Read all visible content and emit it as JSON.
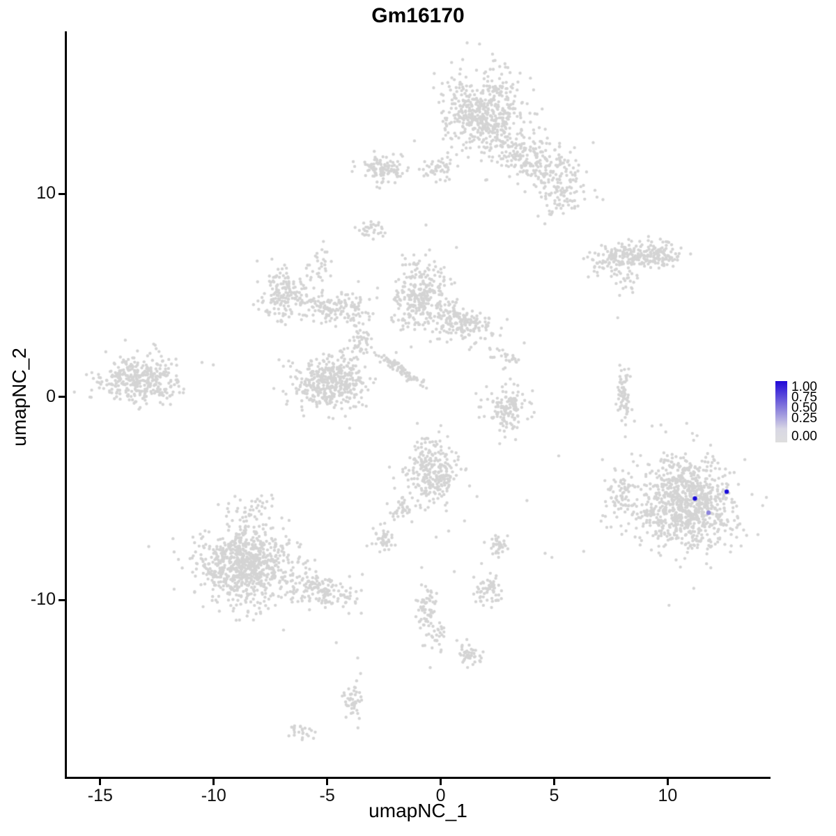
{
  "chart_data": {
    "type": "scatter",
    "title": "Gm16170",
    "xlabel": "umapNC_1",
    "ylabel": "umapNC_2",
    "xlim": [
      -16.5,
      14.5
    ],
    "ylim": [
      -18.7,
      18.0
    ],
    "grid": false,
    "axes": {
      "x_ticks": {
        "values": [
          -15,
          -10,
          -5,
          0,
          5,
          10
        ],
        "labels": [
          "-15",
          "-10",
          "-5",
          "0",
          "5",
          "10"
        ]
      },
      "y_ticks": {
        "values": [
          -10,
          0,
          10
        ],
        "labels": [
          "-10",
          "0",
          "10"
        ]
      }
    },
    "legend": {
      "position": "right",
      "labels": [
        "1.00",
        "0.75",
        "0.50",
        "0.25",
        "0.00"
      ],
      "gradient_stops": [
        "#2008D8 0%",
        "#8A7FDC 45%",
        "#D8D7E4 78%",
        "#DEDEDE 100%"
      ],
      "high_color": "#2008D8",
      "low_color": "#DEDEDE"
    },
    "style": {
      "background_point_color": "#D4D4D4",
      "point_radius_px": 2.2,
      "highlight_radius_px": 3.2,
      "axis_color": "#000000",
      "seed": 7
    },
    "clusters": [
      {
        "name": "top-main",
        "cx": 1.9,
        "cy": 14.0,
        "sdx": 0.85,
        "sdy": 1.05,
        "n": 520,
        "rot": 0
      },
      {
        "name": "top-right-shoulder",
        "cx": 4.3,
        "cy": 11.6,
        "sdx": 1.0,
        "sdy": 0.55,
        "n": 230,
        "rot": -25
      },
      {
        "name": "top-right-arm",
        "cx": 5.3,
        "cy": 9.9,
        "sdx": 0.45,
        "sdy": 0.5,
        "n": 70,
        "rot": -40
      },
      {
        "name": "top-left-bridge",
        "cx": 0.0,
        "cy": 11.2,
        "sdx": 0.55,
        "sdy": 0.3,
        "n": 45,
        "rot": 0
      },
      {
        "name": "upper-left-small",
        "cx": -2.5,
        "cy": 11.3,
        "sdx": 0.45,
        "sdy": 0.33,
        "n": 110,
        "rot": 0
      },
      {
        "name": "small-mid-left",
        "cx": -3.1,
        "cy": 8.2,
        "sdx": 0.27,
        "sdy": 0.22,
        "n": 30,
        "rot": 0
      },
      {
        "name": "right-elongated",
        "cx": 8.3,
        "cy": 6.9,
        "sdx": 0.95,
        "sdy": 0.32,
        "n": 220,
        "rot": 5
      },
      {
        "name": "right-elongated-knob",
        "cx": 9.8,
        "cy": 7.0,
        "sdx": 0.4,
        "sdy": 0.3,
        "n": 55,
        "rot": 0
      },
      {
        "name": "below-elongated",
        "cx": 8.2,
        "cy": 5.6,
        "sdx": 0.3,
        "sdy": 0.3,
        "n": 20,
        "rot": 0
      },
      {
        "name": "midleft-blob",
        "cx": -6.8,
        "cy": 5.1,
        "sdx": 0.6,
        "sdy": 0.6,
        "n": 170,
        "rot": 0
      },
      {
        "name": "midleft-arm-up",
        "cx": -5.3,
        "cy": 6.6,
        "sdx": 0.2,
        "sdy": 0.45,
        "n": 28,
        "rot": 0
      },
      {
        "name": "midleft-bridge",
        "cx": -5.1,
        "cy": 4.4,
        "sdx": 0.45,
        "sdy": 0.4,
        "n": 70,
        "rot": 0
      },
      {
        "name": "mid-bridge2",
        "cx": -3.9,
        "cy": 4.3,
        "sdx": 0.45,
        "sdy": 0.45,
        "n": 70,
        "rot": 0
      },
      {
        "name": "center-top-blob",
        "cx": -0.9,
        "cy": 5.0,
        "sdx": 0.62,
        "sdy": 0.88,
        "n": 280,
        "rot": 0
      },
      {
        "name": "center-right-blob",
        "cx": 1.0,
        "cy": 3.6,
        "sdx": 0.75,
        "sdy": 0.45,
        "n": 170,
        "rot": -10
      },
      {
        "name": "center-dense",
        "cx": -4.9,
        "cy": 0.8,
        "sdx": 0.8,
        "sdy": 0.68,
        "n": 400,
        "rot": 0
      },
      {
        "name": "center-streak",
        "cx": -1.75,
        "cy": 1.35,
        "sdx": 0.7,
        "sdy": 0.1,
        "n": 80,
        "rot": -38
      },
      {
        "name": "center-connector",
        "cx": -3.5,
        "cy": 2.7,
        "sdx": 0.25,
        "sdy": 0.42,
        "n": 40,
        "rot": 0
      },
      {
        "name": "center-right-sparse",
        "cx": 2.8,
        "cy": 2.0,
        "sdx": 0.4,
        "sdy": 0.35,
        "n": 28,
        "rot": 0
      },
      {
        "name": "far-left",
        "cx": -13.2,
        "cy": 0.85,
        "sdx": 0.95,
        "sdy": 0.58,
        "n": 340,
        "rot": 0
      },
      {
        "name": "right-sliver",
        "cx": 8.05,
        "cy": 0.0,
        "sdx": 0.15,
        "sdy": 0.7,
        "n": 70,
        "rot": 0
      },
      {
        "name": "mid-small",
        "cx": 2.9,
        "cy": -0.6,
        "sdx": 0.5,
        "sdy": 0.5,
        "n": 130,
        "rot": 0
      },
      {
        "name": "center-lower",
        "cx": -0.3,
        "cy": -3.7,
        "sdx": 0.6,
        "sdy": 0.78,
        "n": 260,
        "rot": 0
      },
      {
        "name": "center-lower-tail",
        "cx": -1.7,
        "cy": -5.5,
        "sdx": 0.3,
        "sdy": 0.25,
        "n": 35,
        "rot": -20
      },
      {
        "name": "right-main",
        "cx": 10.9,
        "cy": -5.2,
        "sdx": 1.05,
        "sdy": 1.1,
        "n": 900,
        "rot": 0
      },
      {
        "name": "right-main-west",
        "cx": 7.9,
        "cy": -4.7,
        "sdx": 0.35,
        "sdy": 0.85,
        "n": 70,
        "rot": 0
      },
      {
        "name": "bottom-left-main",
        "cx": -8.6,
        "cy": -8.3,
        "sdx": 1.0,
        "sdy": 0.95,
        "n": 780,
        "rot": 0
      },
      {
        "name": "bottom-left-taper",
        "cx": -5.3,
        "cy": -9.5,
        "sdx": 0.8,
        "sdy": 0.42,
        "n": 150,
        "rot": -15
      },
      {
        "name": "bottom-left-sparse",
        "cx": -8.3,
        "cy": -5.5,
        "sdx": 0.55,
        "sdy": 0.33,
        "n": 40,
        "rot": 0
      },
      {
        "name": "small-left-low",
        "cx": -2.6,
        "cy": -7.0,
        "sdx": 0.25,
        "sdy": 0.3,
        "n": 40,
        "rot": 0
      },
      {
        "name": "small-mid-low",
        "cx": 2.5,
        "cy": -7.3,
        "sdx": 0.23,
        "sdy": 0.28,
        "n": 35,
        "rot": 0
      },
      {
        "name": "small-mid-lower",
        "cx": 2.1,
        "cy": -9.5,
        "sdx": 0.34,
        "sdy": 0.35,
        "n": 60,
        "rot": 0
      },
      {
        "name": "chain-vertical",
        "cx": -0.6,
        "cy": -10.4,
        "sdx": 0.22,
        "sdy": 0.9,
        "n": 65,
        "rot": 0
      },
      {
        "name": "chain-branch",
        "cx": 0.0,
        "cy": -11.7,
        "sdx": 0.16,
        "sdy": 0.3,
        "n": 20,
        "rot": 0
      },
      {
        "name": "small-bottom-mid",
        "cx": 1.15,
        "cy": -12.7,
        "sdx": 0.28,
        "sdy": 0.26,
        "n": 45,
        "rot": 0
      },
      {
        "name": "small-bottom-left",
        "cx": -3.8,
        "cy": -14.8,
        "sdx": 0.23,
        "sdy": 0.55,
        "n": 45,
        "rot": 0
      },
      {
        "name": "tiny-bottom-left",
        "cx": -6.2,
        "cy": -16.45,
        "sdx": 0.32,
        "sdy": 0.18,
        "n": 25,
        "rot": 0
      }
    ],
    "singles": [
      [
        7.8,
        3.9
      ],
      [
        3.3,
        -2.1
      ],
      [
        2.6,
        -2.3
      ],
      [
        1.8,
        -8.2
      ],
      [
        0.35,
        -6.6
      ],
      [
        1.05,
        -6.1
      ],
      [
        -0.2,
        -6.9
      ],
      [
        4.6,
        -7.7
      ],
      [
        4.9,
        -7.9
      ],
      [
        3.8,
        -5.1
      ],
      [
        5.2,
        -2.9
      ],
      [
        6.3,
        -7.6
      ],
      [
        0.6,
        -8.6
      ],
      [
        -4.6,
        -12.1
      ],
      [
        1.6,
        -4.9
      ]
    ],
    "highlighted_points": [
      {
        "x": 11.2,
        "y": -5.0,
        "value": 1.0,
        "color": "#1709D9"
      },
      {
        "x": 12.6,
        "y": -4.66,
        "value": 1.0,
        "color": "#1709D9"
      },
      {
        "x": 11.8,
        "y": -5.7,
        "value": 0.35,
        "color": "#8D84DC"
      }
    ]
  }
}
